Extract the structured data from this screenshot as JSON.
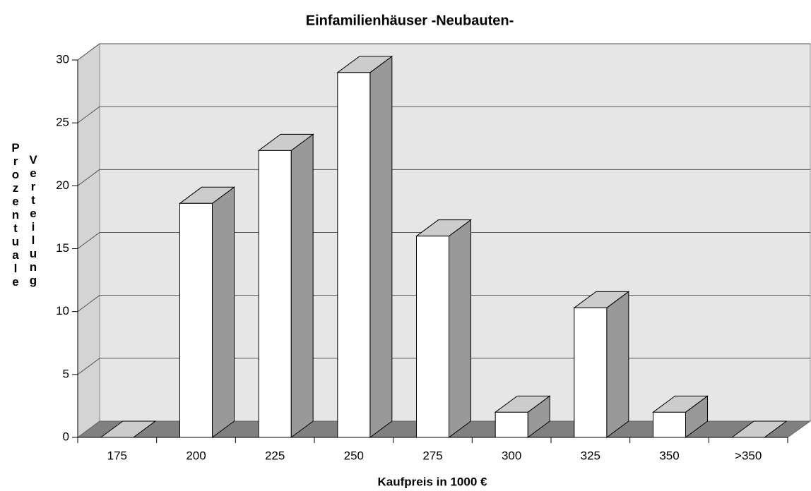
{
  "chart_data": {
    "type": "bar3d",
    "title": "Einfamilienhäuser  -Neubauten-",
    "xlabel": "Kaufpreis in 1000 €",
    "ylabel": [
      "Prozentuale",
      "Verteilung"
    ],
    "categories": [
      "175",
      "200",
      "225",
      "250",
      "275",
      "300",
      "325",
      "350",
      ">350"
    ],
    "values": [
      0,
      18.6,
      22.8,
      29,
      16,
      2,
      10.3,
      2,
      0
    ],
    "ylim": [
      0,
      30
    ],
    "yticks": [
      0,
      5,
      10,
      15,
      20,
      25,
      30
    ],
    "grid": true,
    "color": "#ffffff"
  }
}
